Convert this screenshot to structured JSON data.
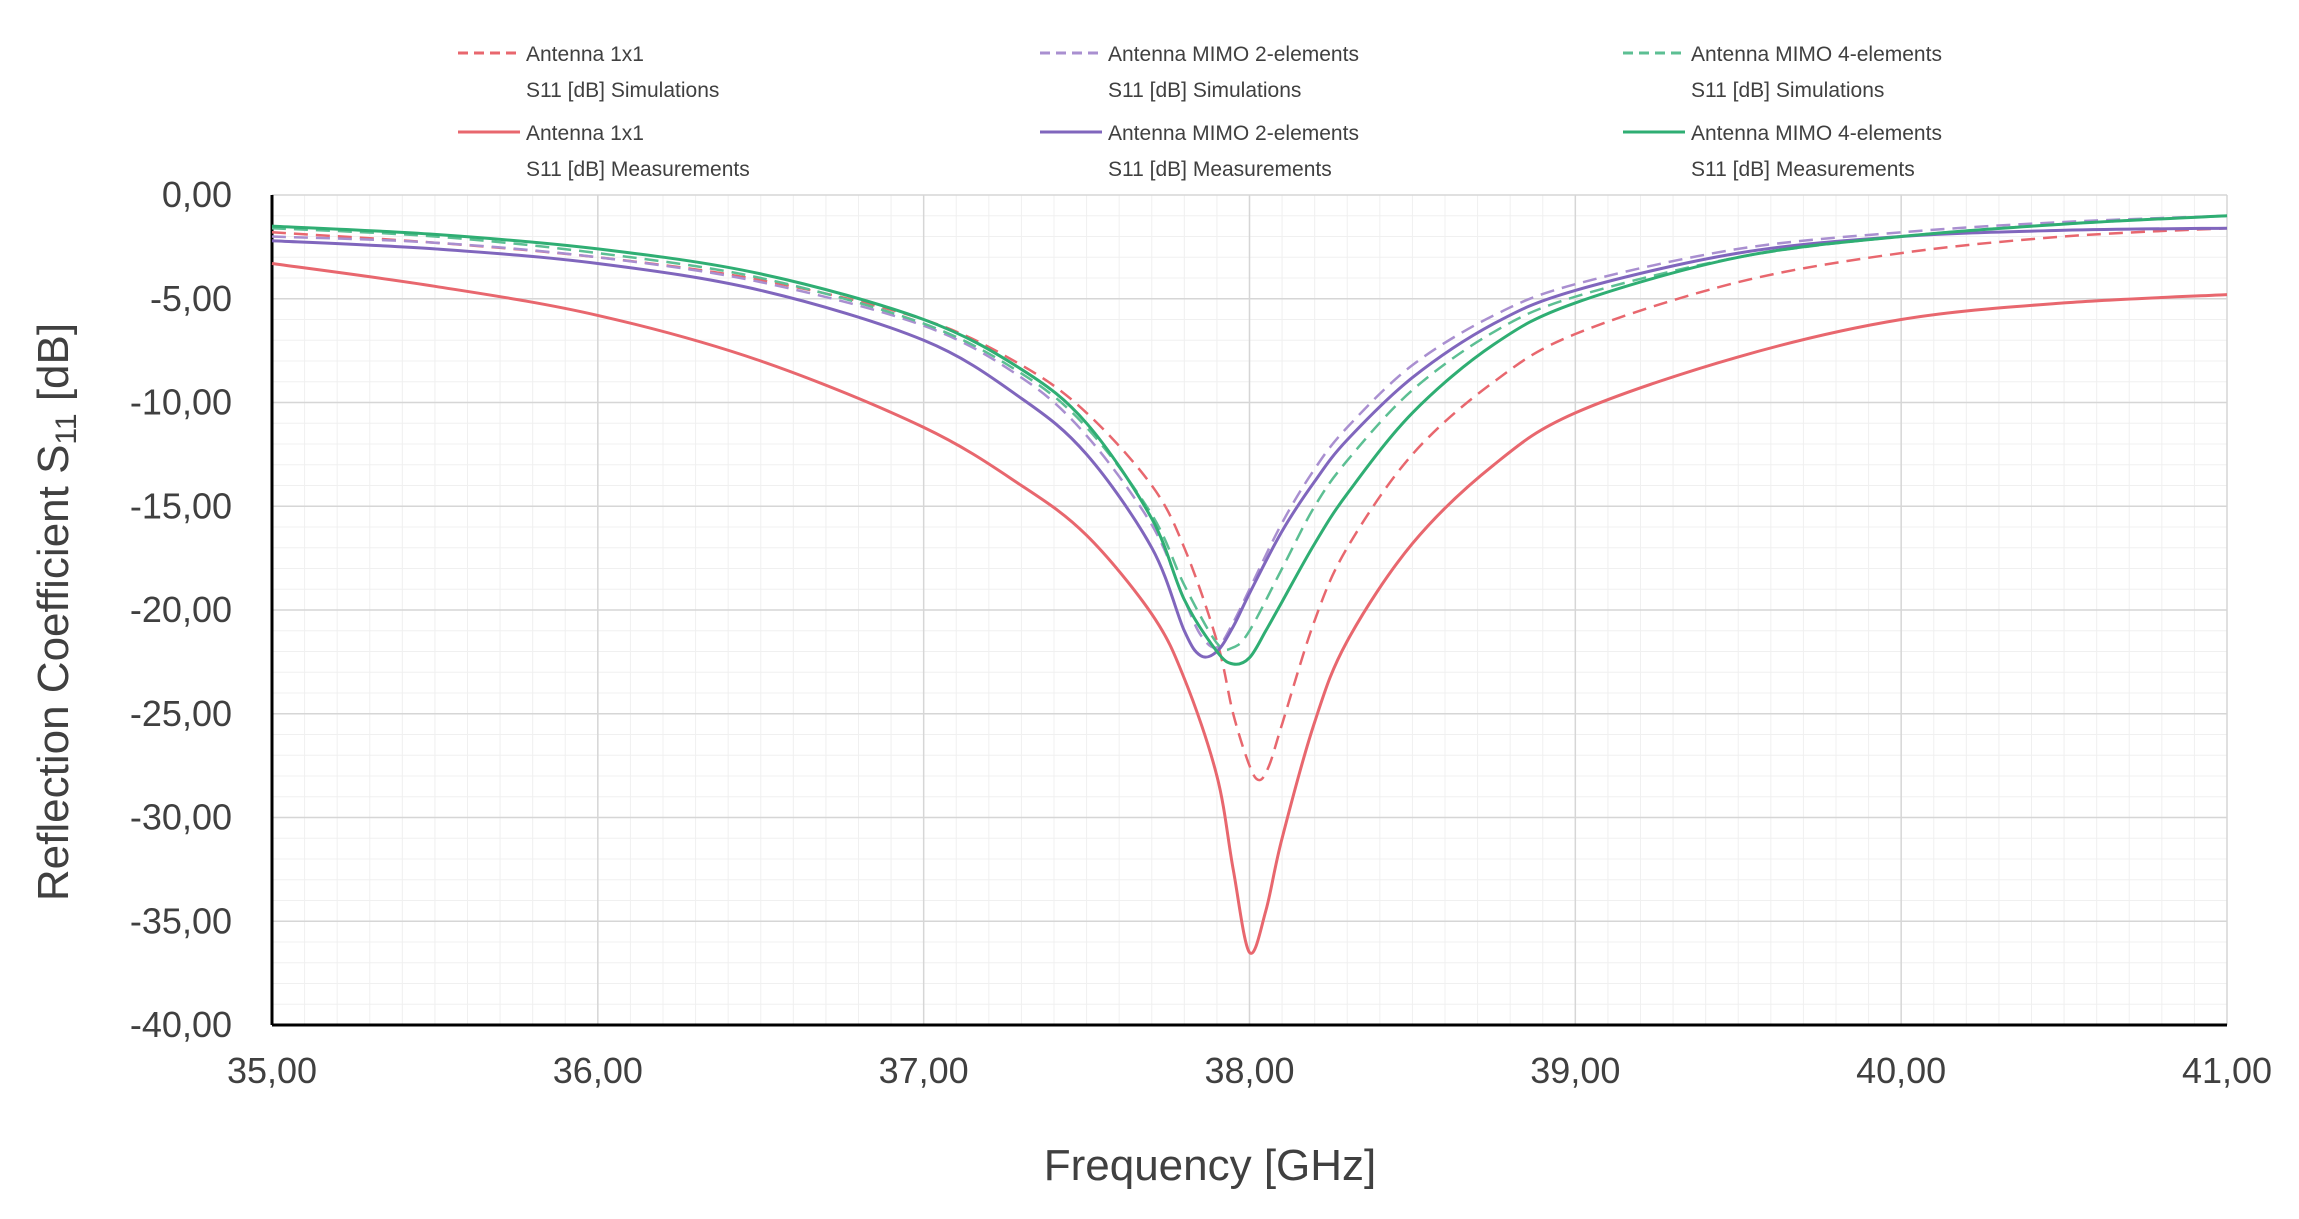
{
  "chart_data": {
    "type": "line",
    "xlabel": "Frequency [GHz]",
    "ylabel": "Reflection Coefficient S",
    "ylabel_subscript": "11",
    "ylabel_suffix": " [dB]",
    "xlim": [
      35,
      41
    ],
    "ylim": [
      -40,
      0
    ],
    "x_ticks": [
      35,
      36,
      37,
      38,
      39,
      40,
      41
    ],
    "x_tick_labels": [
      "35,00",
      "36,00",
      "37,00",
      "38,00",
      "39,00",
      "40,00",
      "41,00"
    ],
    "y_ticks": [
      0,
      -5,
      -10,
      -15,
      -20,
      -25,
      -30,
      -35,
      -40
    ],
    "y_tick_labels": [
      "0,00",
      "-5,00",
      "-10,00",
      "-15,00",
      "-20,00",
      "-25,00",
      "-30,00",
      "-35,00",
      "-40,00"
    ],
    "grid": true,
    "legend_position": "top",
    "series": [
      {
        "name": "Antenna 1x1",
        "subname": "S11 [dB] Simulations",
        "color": "#e8676e",
        "dash": true,
        "x": [
          35,
          35.5,
          36,
          36.5,
          37,
          37.3,
          37.5,
          37.7,
          37.8,
          37.9,
          37.95,
          38.0,
          38.03,
          38.06,
          38.1,
          38.2,
          38.3,
          38.5,
          38.75,
          39,
          39.5,
          40,
          40.5,
          41
        ],
        "y": [
          -1.8,
          -2.3,
          -3.0,
          -4.1,
          -6.0,
          -8.2,
          -10.5,
          -14.0,
          -17.0,
          -21.5,
          -25.0,
          -27.5,
          -28.2,
          -27.5,
          -25.5,
          -20.5,
          -17.0,
          -12.5,
          -9.0,
          -6.7,
          -4.2,
          -2.8,
          -2.0,
          -1.6
        ]
      },
      {
        "name": "Antenna MIMO 2-elements",
        "subname": "S11 [dB] Simulations",
        "color": "#a98fd0",
        "dash": true,
        "x": [
          35,
          35.5,
          36,
          36.5,
          37,
          37.3,
          37.5,
          37.7,
          37.8,
          37.85,
          37.9,
          37.95,
          38.0,
          38.1,
          38.2,
          38.3,
          38.5,
          38.75,
          39,
          39.5,
          40,
          40.5,
          41
        ],
        "y": [
          -2.0,
          -2.3,
          -3.0,
          -4.2,
          -6.3,
          -8.8,
          -11.6,
          -15.9,
          -19.5,
          -21.2,
          -21.8,
          -20.6,
          -19.0,
          -15.8,
          -13.2,
          -11.2,
          -8.2,
          -5.8,
          -4.3,
          -2.6,
          -1.8,
          -1.3,
          -1.0
        ]
      },
      {
        "name": "Antenna MIMO 4-elements",
        "subname": "S11 [dB] Simulations",
        "color": "#5cbf93",
        "dash": true,
        "x": [
          35,
          35.5,
          36,
          36.5,
          37,
          37.3,
          37.5,
          37.7,
          37.8,
          37.9,
          37.95,
          38.0,
          38.1,
          38.2,
          38.3,
          38.5,
          38.75,
          39,
          39.5,
          40,
          40.5,
          41
        ],
        "y": [
          -1.6,
          -2.0,
          -2.8,
          -4.0,
          -6.2,
          -8.6,
          -11.2,
          -15.4,
          -18.8,
          -21.6,
          -21.8,
          -21.0,
          -18.0,
          -15.0,
          -12.8,
          -9.4,
          -6.6,
          -4.9,
          -3.0,
          -2.0,
          -1.4,
          -1.0
        ]
      },
      {
        "name": "Antenna 1x1",
        "subname": "S11 [dB] Measurements",
        "color": "#e8676e",
        "dash": false,
        "x": [
          35,
          35.5,
          36,
          36.5,
          37,
          37.3,
          37.5,
          37.7,
          37.8,
          37.9,
          37.95,
          38.0,
          38.05,
          38.1,
          38.2,
          38.3,
          38.5,
          38.75,
          39,
          39.5,
          40,
          40.5,
          41
        ],
        "y": [
          -3.3,
          -4.4,
          -5.8,
          -8.0,
          -11.2,
          -14.0,
          -16.4,
          -20.2,
          -23.3,
          -28.0,
          -32.5,
          -36.5,
          -34.5,
          -31.0,
          -25.4,
          -21.5,
          -16.8,
          -13.0,
          -10.5,
          -7.8,
          -6.0,
          -5.2,
          -4.8
        ]
      },
      {
        "name": "Antenna MIMO 2-elements",
        "subname": "S11 [dB] Measurements",
        "color": "#8066bd",
        "dash": false,
        "x": [
          35,
          35.5,
          36,
          36.5,
          37,
          37.3,
          37.5,
          37.7,
          37.8,
          37.85,
          37.9,
          37.95,
          38.0,
          38.1,
          38.2,
          38.3,
          38.5,
          38.75,
          39,
          39.5,
          40,
          40.5,
          41
        ],
        "y": [
          -2.2,
          -2.6,
          -3.3,
          -4.6,
          -7.0,
          -9.8,
          -12.5,
          -17.0,
          -21.0,
          -22.2,
          -22.0,
          -20.8,
          -19.2,
          -16.2,
          -13.8,
          -11.8,
          -8.8,
          -6.2,
          -4.6,
          -2.8,
          -2.0,
          -1.7,
          -1.6
        ]
      },
      {
        "name": "Antenna MIMO 4-elements",
        "subname": "S11 [dB] Measurements",
        "color": "#2fae73",
        "dash": false,
        "x": [
          35,
          35.5,
          36,
          36.5,
          37,
          37.3,
          37.5,
          37.7,
          37.8,
          37.9,
          37.95,
          38.0,
          38.05,
          38.1,
          38.2,
          38.3,
          38.5,
          38.75,
          39,
          39.5,
          40,
          40.5,
          41
        ],
        "y": [
          -1.5,
          -1.9,
          -2.6,
          -3.8,
          -6.0,
          -8.4,
          -11.0,
          -15.6,
          -19.5,
          -22.0,
          -22.6,
          -22.3,
          -21.0,
          -19.6,
          -16.8,
          -14.4,
          -10.5,
          -7.2,
          -5.2,
          -3.0,
          -2.0,
          -1.4,
          -1.0
        ]
      }
    ]
  }
}
